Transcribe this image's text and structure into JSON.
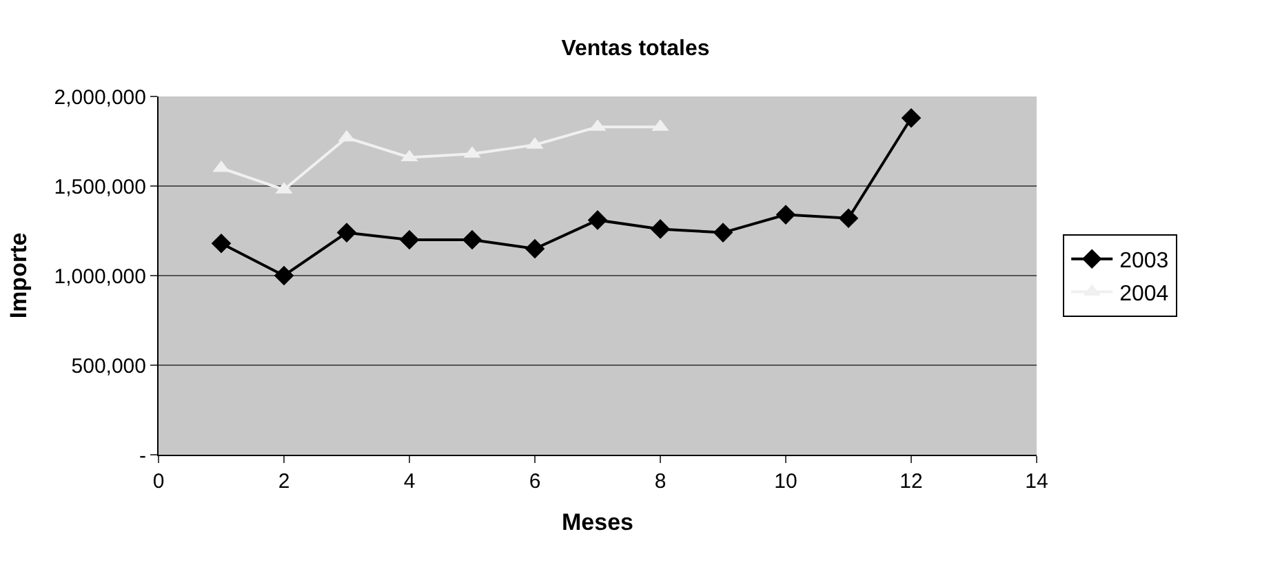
{
  "chart_data": {
    "type": "line",
    "title": "Ventas totales",
    "xlabel": "Meses",
    "ylabel": "Importe",
    "x": [
      1,
      2,
      3,
      4,
      5,
      6,
      7,
      8,
      9,
      10,
      11,
      12
    ],
    "series": [
      {
        "name": "2003",
        "color": "#000000",
        "marker": "diamond",
        "values": [
          1180000,
          1000000,
          1240000,
          1200000,
          1200000,
          1150000,
          1310000,
          1260000,
          1240000,
          1340000,
          1320000,
          1880000
        ]
      },
      {
        "name": "2004",
        "color": "#f0f0f0",
        "marker": "triangle",
        "values": [
          1600000,
          1480000,
          1770000,
          1660000,
          1680000,
          1730000,
          1830000,
          1830000,
          null,
          null,
          null,
          null
        ]
      }
    ],
    "xlim": [
      0,
      14
    ],
    "xticks": [
      0,
      2,
      4,
      6,
      8,
      10,
      12,
      14
    ],
    "ylim": [
      0,
      2000000
    ],
    "yticks": [
      {
        "value": 0,
        "label": "-"
      },
      {
        "value": 500000,
        "label": "500,000"
      },
      {
        "value": 1000000,
        "label": "1,000,000"
      },
      {
        "value": 1500000,
        "label": "1,500,000"
      },
      {
        "value": 2000000,
        "label": "2,000,000"
      }
    ],
    "grid": "y",
    "legend": "right"
  }
}
